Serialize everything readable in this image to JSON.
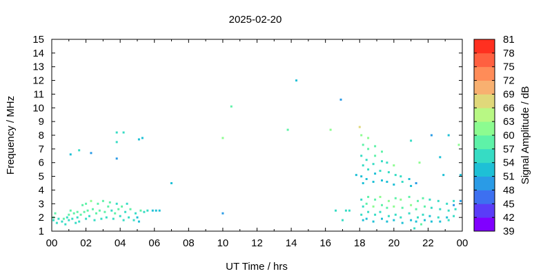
{
  "chart_data": {
    "type": "heatmap",
    "title": "2025-02-20",
    "xlabel": "UT Time / hrs",
    "ylabel": "Frequency / MHz",
    "xlim": [
      0,
      24
    ],
    "ylim": [
      1,
      15
    ],
    "x_tick_labels": [
      "00",
      "02",
      "04",
      "06",
      "08",
      "10",
      "12",
      "14",
      "16",
      "18",
      "20",
      "22",
      "00"
    ],
    "y_tick_labels": [
      "1",
      "2",
      "3",
      "4",
      "5",
      "6",
      "7",
      "8",
      "9",
      "10",
      "11",
      "12",
      "13",
      "14",
      "15"
    ],
    "colorbar": {
      "label": "Signal Amplitude / dB",
      "range": [
        39,
        81
      ],
      "tick_labels": [
        "39",
        "42",
        "45",
        "48",
        "51",
        "54",
        "57",
        "60",
        "63",
        "66",
        "69",
        "72",
        "75",
        "78",
        "81"
      ],
      "colors": [
        "#8000ff",
        "#5a3cf8",
        "#3d70f0",
        "#2a9be6",
        "#1ec0d6",
        "#36dcc4",
        "#5ef2a8",
        "#8cfc90",
        "#b8f884",
        "#e0d87a",
        "#f8b070",
        "#ff8c58",
        "#ff6040",
        "#ff3020"
      ]
    },
    "points": [
      [
        0.1,
        2.0,
        57
      ],
      [
        0.1,
        1.8,
        55
      ],
      [
        0.2,
        2.3,
        57
      ],
      [
        0.3,
        1.6,
        56
      ],
      [
        0.4,
        1.9,
        54
      ],
      [
        0.6,
        1.7,
        55
      ],
      [
        0.7,
        1.9,
        57
      ],
      [
        0.8,
        1.5,
        56
      ],
      [
        0.9,
        2.0,
        55
      ],
      [
        1.0,
        2.2,
        57
      ],
      [
        1.0,
        1.8,
        56
      ],
      [
        1.1,
        2.5,
        58
      ],
      [
        1.2,
        1.9,
        55
      ],
      [
        1.3,
        2.3,
        57
      ],
      [
        1.4,
        1.6,
        55
      ],
      [
        1.5,
        2.0,
        56
      ],
      [
        1.5,
        2.4,
        57
      ],
      [
        1.6,
        1.7,
        54
      ],
      [
        1.7,
        2.2,
        57
      ],
      [
        1.8,
        2.9,
        59
      ],
      [
        1.9,
        2.4,
        57
      ],
      [
        2.0,
        1.9,
        55
      ],
      [
        2.0,
        3.0,
        58
      ],
      [
        2.1,
        2.5,
        57
      ],
      [
        2.2,
        2.1,
        56
      ],
      [
        2.3,
        3.2,
        61
      ],
      [
        2.4,
        2.6,
        58
      ],
      [
        2.5,
        1.8,
        55
      ],
      [
        2.6,
        2.3,
        57
      ],
      [
        2.7,
        3.0,
        59
      ],
      [
        2.8,
        2.5,
        57
      ],
      [
        2.9,
        1.9,
        55
      ],
      [
        3.0,
        3.2,
        58
      ],
      [
        3.1,
        2.4,
        57
      ],
      [
        3.2,
        2.0,
        56
      ],
      [
        3.3,
        2.8,
        58
      ],
      [
        3.4,
        3.1,
        57
      ],
      [
        3.5,
        2.5,
        56
      ],
      [
        3.6,
        1.9,
        54
      ],
      [
        3.7,
        2.3,
        57
      ],
      [
        3.8,
        3.0,
        55
      ],
      [
        3.9,
        2.6,
        57
      ],
      [
        4.0,
        2.1,
        56
      ],
      [
        4.1,
        2.8,
        58
      ],
      [
        4.2,
        1.8,
        55
      ],
      [
        4.3,
        2.4,
        56
      ],
      [
        4.4,
        3.0,
        54
      ],
      [
        4.5,
        2.0,
        56
      ],
      [
        4.6,
        2.6,
        57
      ],
      [
        4.8,
        1.8,
        54
      ],
      [
        4.9,
        2.3,
        56
      ],
      [
        5.0,
        2.0,
        53
      ],
      [
        5.1,
        1.7,
        52
      ],
      [
        5.2,
        2.5,
        57
      ],
      [
        5.4,
        2.4,
        55
      ],
      [
        5.6,
        2.5,
        56
      ],
      [
        5.9,
        2.5,
        53
      ],
      [
        6.1,
        2.5,
        52
      ],
      [
        6.3,
        2.5,
        51
      ],
      [
        1.1,
        6.6,
        52
      ],
      [
        1.6,
        6.9,
        56
      ],
      [
        2.3,
        6.7,
        49
      ],
      [
        3.8,
        6.3,
        50
      ],
      [
        3.8,
        7.5,
        55
      ],
      [
        3.8,
        8.2,
        56
      ],
      [
        4.2,
        8.2,
        56
      ],
      [
        5.1,
        7.7,
        52
      ],
      [
        5.3,
        7.8,
        51
      ],
      [
        7.0,
        4.5,
        51
      ],
      [
        10.0,
        2.3,
        49
      ],
      [
        10.0,
        7.8,
        60
      ],
      [
        10.5,
        10.1,
        57
      ],
      [
        13.8,
        8.4,
        57
      ],
      [
        14.3,
        12.0,
        53
      ],
      [
        16.3,
        8.4,
        60
      ],
      [
        16.6,
        2.5,
        54
      ],
      [
        16.9,
        10.6,
        49
      ],
      [
        17.0,
        1.8,
        56
      ],
      [
        17.2,
        2.5,
        55
      ],
      [
        17.4,
        2.5,
        55
      ],
      [
        17.8,
        5.1,
        52
      ],
      [
        18.0,
        8.6,
        66
      ],
      [
        18.1,
        8.0,
        61
      ],
      [
        18.2,
        7.3,
        57
      ],
      [
        18.1,
        6.5,
        56
      ],
      [
        18.2,
        5.8,
        55
      ],
      [
        18.1,
        5.0,
        53
      ],
      [
        18.2,
        4.5,
        52
      ],
      [
        18.1,
        3.3,
        55
      ],
      [
        18.2,
        2.8,
        56
      ],
      [
        18.1,
        2.2,
        54
      ],
      [
        18.2,
        1.8,
        52
      ],
      [
        18.5,
        7.8,
        60
      ],
      [
        18.5,
        7.0,
        58
      ],
      [
        18.4,
        6.2,
        56
      ],
      [
        18.5,
        5.5,
        55
      ],
      [
        18.4,
        4.8,
        53
      ],
      [
        18.5,
        3.5,
        57
      ],
      [
        18.4,
        3.0,
        59
      ],
      [
        18.5,
        2.4,
        55
      ],
      [
        18.4,
        1.9,
        51
      ],
      [
        18.9,
        7.2,
        59
      ],
      [
        18.9,
        6.5,
        57
      ],
      [
        18.8,
        5.9,
        55
      ],
      [
        18.9,
        5.2,
        53
      ],
      [
        18.8,
        4.6,
        52
      ],
      [
        18.9,
        3.3,
        58
      ],
      [
        18.8,
        2.8,
        60
      ],
      [
        18.9,
        2.2,
        54
      ],
      [
        18.8,
        1.7,
        52
      ],
      [
        19.3,
        6.8,
        58
      ],
      [
        19.3,
        6.1,
        56
      ],
      [
        19.2,
        5.4,
        54
      ],
      [
        19.3,
        4.7,
        53
      ],
      [
        19.2,
        3.5,
        60
      ],
      [
        19.3,
        2.9,
        59
      ],
      [
        19.2,
        2.4,
        55
      ],
      [
        19.3,
        1.9,
        52
      ],
      [
        19.6,
        6.0,
        56
      ],
      [
        19.7,
        5.3,
        55
      ],
      [
        19.6,
        4.6,
        53
      ],
      [
        19.7,
        3.2,
        61
      ],
      [
        19.6,
        2.7,
        58
      ],
      [
        19.7,
        2.1,
        54
      ],
      [
        19.6,
        1.7,
        52
      ],
      [
        20.0,
        5.8,
        60
      ],
      [
        20.1,
        5.1,
        55
      ],
      [
        20.0,
        4.4,
        53
      ],
      [
        20.1,
        3.4,
        59
      ],
      [
        20.0,
        2.8,
        62
      ],
      [
        20.1,
        2.2,
        55
      ],
      [
        20.0,
        1.8,
        52
      ],
      [
        20.4,
        5.0,
        54
      ],
      [
        20.5,
        4.6,
        56
      ],
      [
        20.4,
        3.3,
        61
      ],
      [
        20.5,
        2.7,
        58
      ],
      [
        20.4,
        2.0,
        55
      ],
      [
        20.5,
        1.6,
        52
      ],
      [
        20.9,
        4.8,
        53
      ],
      [
        21.0,
        4.3,
        51
      ],
      [
        20.9,
        3.5,
        58
      ],
      [
        21.0,
        2.9,
        60
      ],
      [
        20.9,
        2.3,
        55
      ],
      [
        21.0,
        1.8,
        52
      ],
      [
        21.3,
        4.5,
        49
      ],
      [
        21.4,
        3.2,
        58
      ],
      [
        21.3,
        2.6,
        57
      ],
      [
        21.4,
        2.0,
        54
      ],
      [
        21.3,
        1.7,
        51
      ],
      [
        21.7,
        3.4,
        58
      ],
      [
        21.8,
        2.8,
        57
      ],
      [
        21.7,
        2.2,
        54
      ],
      [
        21.8,
        1.8,
        51
      ],
      [
        22.1,
        3.3,
        54
      ],
      [
        22.2,
        2.7,
        55
      ],
      [
        22.1,
        2.1,
        53
      ],
      [
        22.2,
        1.7,
        51
      ],
      [
        22.6,
        3.2,
        56
      ],
      [
        22.7,
        2.6,
        55
      ],
      [
        22.6,
        2.0,
        54
      ],
      [
        22.7,
        1.7,
        52
      ],
      [
        23.1,
        3.0,
        55
      ],
      [
        23.2,
        2.5,
        56
      ],
      [
        23.1,
        2.0,
        53
      ],
      [
        23.2,
        1.8,
        54
      ],
      [
        23.5,
        3.2,
        55
      ],
      [
        23.6,
        2.6,
        56
      ],
      [
        23.5,
        2.1,
        55
      ],
      [
        21.0,
        7.6,
        55
      ],
      [
        21.5,
        6.0,
        62
      ],
      [
        22.2,
        8.0,
        49
      ],
      [
        22.7,
        6.4,
        52
      ],
      [
        22.9,
        5.1,
        52
      ],
      [
        23.2,
        8.0,
        52
      ],
      [
        23.8,
        7.3,
        62
      ],
      [
        23.9,
        5.1,
        52
      ],
      [
        23.9,
        3.2,
        50
      ],
      [
        21.2,
        1.2,
        56
      ],
      [
        21.6,
        1.5,
        58
      ],
      [
        23.5,
        2.9,
        48
      ]
    ]
  }
}
